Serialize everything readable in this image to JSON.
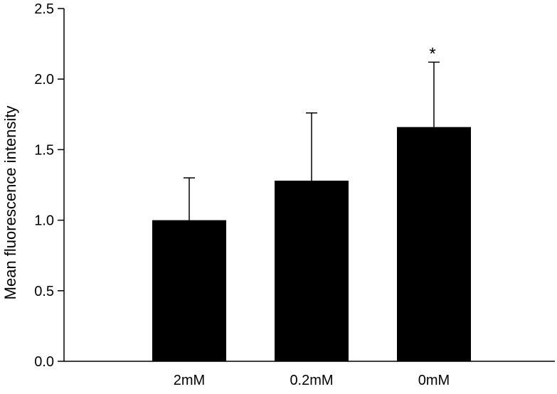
{
  "chart_data": {
    "type": "bar",
    "title": "",
    "xlabel": "",
    "ylabel": "Mean fluorescence intensity",
    "categories": [
      "2mM",
      "0.2mM",
      "0mM"
    ],
    "values": [
      1.0,
      1.28,
      1.66
    ],
    "error_upper": [
      1.3,
      1.76,
      2.12
    ],
    "annotations": [
      "",
      "",
      "*"
    ],
    "ylim": [
      0,
      2.5
    ],
    "yticks": [
      "0.0",
      "0.5",
      "1.0",
      "1.5",
      "2.0",
      "2.5"
    ],
    "grid": false,
    "legend": "none",
    "bar_color": "#000000"
  }
}
